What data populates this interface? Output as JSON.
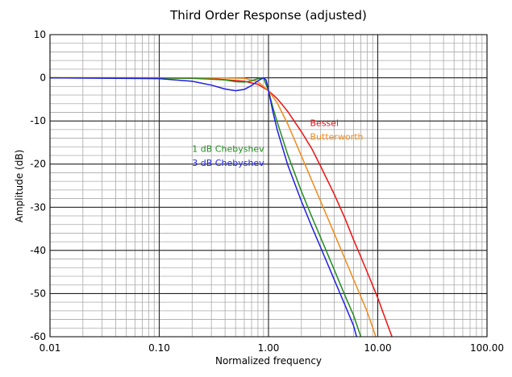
{
  "chart_data": {
    "type": "line",
    "title": "Third Order Response (adjusted)",
    "xlabel": "Normalized frequency",
    "ylabel": "Amplitude (dB)",
    "xscale": "log",
    "xlim": [
      0.01,
      100
    ],
    "ylim": [
      -60,
      10
    ],
    "grid": true,
    "x_ticks": [
      "0.01",
      "0.10",
      "1.00",
      "10.00",
      "100.00"
    ],
    "y_ticks": [
      "10",
      "0",
      "-10",
      "-20",
      "-30",
      "-40",
      "-50",
      "-60"
    ],
    "series": [
      {
        "name": "Bessel",
        "color": "#ee1111",
        "points": [
          [
            0.01,
            0
          ],
          [
            0.1,
            0
          ],
          [
            0.3,
            -0.2
          ],
          [
            0.6,
            -0.8
          ],
          [
            0.8,
            -1.5
          ],
          [
            1.0,
            -3.0
          ],
          [
            1.2,
            -4.8
          ],
          [
            1.5,
            -7.8
          ],
          [
            2.0,
            -12.5
          ],
          [
            2.5,
            -16.5
          ],
          [
            3.0,
            -20.5
          ],
          [
            4.0,
            -27.0
          ],
          [
            5.0,
            -32.5
          ],
          [
            6.0,
            -37.5
          ],
          [
            7.0,
            -41.5
          ],
          [
            8.0,
            -45.0
          ],
          [
            10.0,
            -51.0
          ],
          [
            12.0,
            -56.5
          ],
          [
            13.5,
            -60.0
          ]
        ]
      },
      {
        "name": "Butterworth",
        "color": "#f08a1a",
        "points": [
          [
            0.01,
            0
          ],
          [
            0.3,
            0
          ],
          [
            0.6,
            -0.1
          ],
          [
            0.8,
            -0.9
          ],
          [
            1.0,
            -3.0
          ],
          [
            1.2,
            -5.8
          ],
          [
            1.5,
            -10.7
          ],
          [
            2.0,
            -18.1
          ],
          [
            2.5,
            -23.9
          ],
          [
            3.0,
            -28.6
          ],
          [
            4.0,
            -36.1
          ],
          [
            5.0,
            -41.9
          ],
          [
            6.0,
            -46.7
          ],
          [
            7.0,
            -50.7
          ],
          [
            8.0,
            -54.2
          ],
          [
            9.6,
            -60.0
          ]
        ]
      },
      {
        "name": "1 dB Chebyshev",
        "color": "#228b22",
        "points": [
          [
            0.01,
            0
          ],
          [
            0.2,
            -0.1
          ],
          [
            0.4,
            -0.5
          ],
          [
            0.5,
            -0.9
          ],
          [
            0.6,
            -1.0
          ],
          [
            0.7,
            -0.7
          ],
          [
            0.8,
            -0.2
          ],
          [
            0.9,
            0
          ],
          [
            1.0,
            -3.0
          ],
          [
            1.1,
            -7.0
          ],
          [
            1.2,
            -10.2
          ],
          [
            1.5,
            -17.8
          ],
          [
            2.0,
            -26.3
          ],
          [
            2.5,
            -32.3
          ],
          [
            3.0,
            -37.0
          ],
          [
            4.0,
            -44.5
          ],
          [
            5.0,
            -50.4
          ],
          [
            6.0,
            -55.0
          ],
          [
            7.0,
            -60.0
          ]
        ]
      },
      {
        "name": "3 dB Chebyshev",
        "color": "#1f1fe6",
        "points": [
          [
            0.01,
            0
          ],
          [
            0.1,
            -0.2
          ],
          [
            0.2,
            -0.8
          ],
          [
            0.3,
            -1.7
          ],
          [
            0.4,
            -2.6
          ],
          [
            0.5,
            -3.0
          ],
          [
            0.6,
            -2.7
          ],
          [
            0.7,
            -1.8
          ],
          [
            0.8,
            -0.7
          ],
          [
            0.9,
            0
          ],
          [
            0.95,
            -0.5
          ],
          [
            1.0,
            -3.0
          ],
          [
            1.1,
            -8.0
          ],
          [
            1.2,
            -12.0
          ],
          [
            1.5,
            -20.2
          ],
          [
            2.0,
            -28.6
          ],
          [
            2.5,
            -34.6
          ],
          [
            3.0,
            -39.3
          ],
          [
            4.0,
            -46.8
          ],
          [
            5.0,
            -52.6
          ],
          [
            6.0,
            -57.4
          ],
          [
            6.4,
            -60.0
          ]
        ]
      }
    ],
    "annotations": [
      {
        "text": "Bessel",
        "x": 2.4,
        "y": -11.2,
        "color": "#ee1111"
      },
      {
        "text": "Butterworth",
        "x": 2.4,
        "y": -14.4,
        "color": "#f08a1a"
      },
      {
        "text": "1 dB Chebyshev",
        "x": 0.2,
        "y": -17.2,
        "color": "#228b22"
      },
      {
        "text": "3 dB Chebyshev",
        "x": 0.2,
        "y": -20.4,
        "color": "#1f1fe6"
      }
    ]
  }
}
